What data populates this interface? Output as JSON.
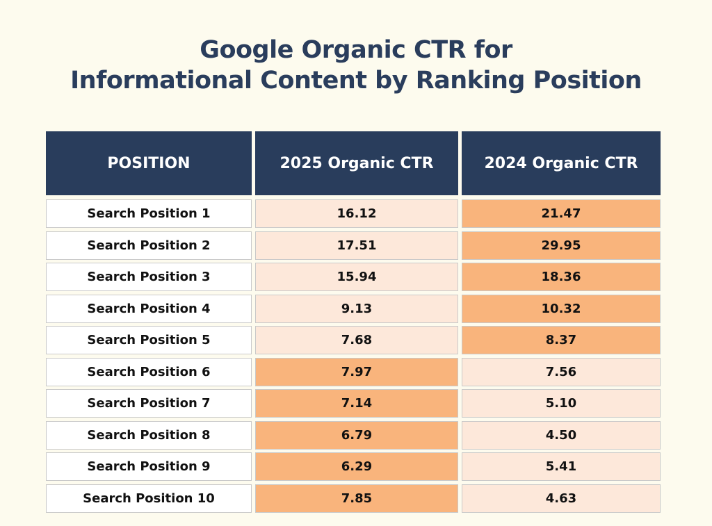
{
  "header": {
    "title_lines": [
      "Google Organic CTR for",
      "Informational Content by Ranking Position"
    ]
  },
  "table": {
    "columns": [
      "POSITION",
      "2025 Organic CTR",
      "2024 Organic CTR"
    ],
    "header_color": "#293d5c",
    "rows": [
      {
        "label": "Search Position 1",
        "values": [
          "16.12",
          "21.47"
        ],
        "fills": [
          "#fde8da",
          "#f9b47c"
        ]
      },
      {
        "label": "Search Position 2",
        "values": [
          "17.51",
          "29.95"
        ],
        "fills": [
          "#fde8da",
          "#f9b47c"
        ]
      },
      {
        "label": "Search Position 3",
        "values": [
          "15.94",
          "18.36"
        ],
        "fills": [
          "#fde8da",
          "#f9b47c"
        ]
      },
      {
        "label": "Search Position 4",
        "values": [
          "9.13",
          "10.32"
        ],
        "fills": [
          "#fde8da",
          "#f9b47c"
        ]
      },
      {
        "label": "Search Position 5",
        "values": [
          "7.68",
          "8.37"
        ],
        "fills": [
          "#fde8da",
          "#f9b47c"
        ]
      },
      {
        "label": "Search Position 6",
        "values": [
          "7.97",
          "7.56"
        ],
        "fills": [
          "#f9b47c",
          "#fde8da"
        ]
      },
      {
        "label": "Search Position 7",
        "values": [
          "7.14",
          "5.10"
        ],
        "fills": [
          "#f9b47c",
          "#fde8da"
        ]
      },
      {
        "label": "Search Position 8",
        "values": [
          "6.79",
          "4.50"
        ],
        "fills": [
          "#f9b47c",
          "#fde8da"
        ]
      },
      {
        "label": "Search Position 9",
        "values": [
          "6.29",
          "5.41"
        ],
        "fills": [
          "#f9b47c",
          "#fde8da"
        ]
      },
      {
        "label": "Search Position 10",
        "values": [
          "7.85",
          "4.63"
        ],
        "fills": [
          "#f9b47c",
          "#fde8da"
        ]
      }
    ]
  }
}
